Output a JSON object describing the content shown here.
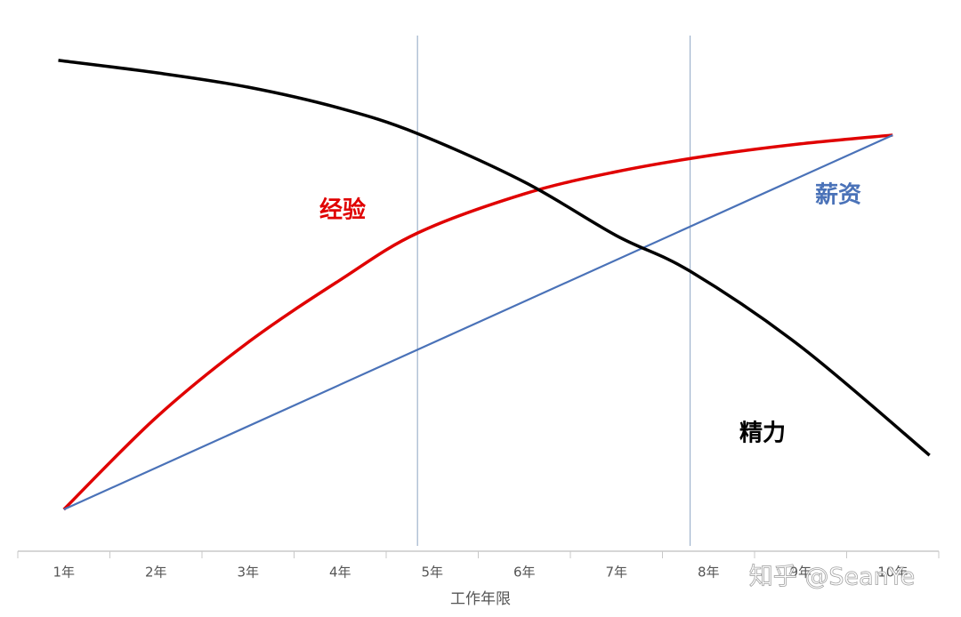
{
  "chart_data": {
    "type": "line",
    "xlabel": "工作年限",
    "watermark": "知乎 @SeanYe",
    "xlim": [
      0.5,
      10.5
    ],
    "ylim": [
      0,
      100
    ],
    "xticks": [
      {
        "value": 1,
        "label": "1年"
      },
      {
        "value": 2,
        "label": "2年"
      },
      {
        "value": 3,
        "label": "3年"
      },
      {
        "value": 4,
        "label": "4年"
      },
      {
        "value": 5,
        "label": "5年"
      },
      {
        "value": 6,
        "label": "6年"
      },
      {
        "value": 7,
        "label": "7年"
      },
      {
        "value": 8,
        "label": "8年"
      },
      {
        "value": 9,
        "label": "9年"
      },
      {
        "value": 10,
        "label": "10年"
      }
    ],
    "reference_lines": [
      4.84,
      7.8
    ],
    "reference_color": "#9fb3cc",
    "series": [
      {
        "name": "经验",
        "color": "#e00000",
        "x": [
          1,
          2,
          3,
          4,
          4.84,
          6,
          7,
          8,
          9,
          10
        ],
        "values": [
          8.1,
          25.9,
          40.5,
          52.6,
          61.7,
          69.3,
          73.6,
          76.7,
          79.0,
          80.7
        ]
      },
      {
        "name": "薪资",
        "color": "#4a72b8",
        "x": [
          1,
          10
        ],
        "values": [
          8.1,
          80.7
        ]
      },
      {
        "name": "精力",
        "color": "#000000",
        "x": [
          0.94,
          2,
          3,
          4,
          4.84,
          6,
          7,
          7.8,
          9,
          10.4
        ],
        "values": [
          95.2,
          92.8,
          90.0,
          85.9,
          81.0,
          71.6,
          61.2,
          54.3,
          39.7,
          18.6
        ]
      }
    ]
  }
}
